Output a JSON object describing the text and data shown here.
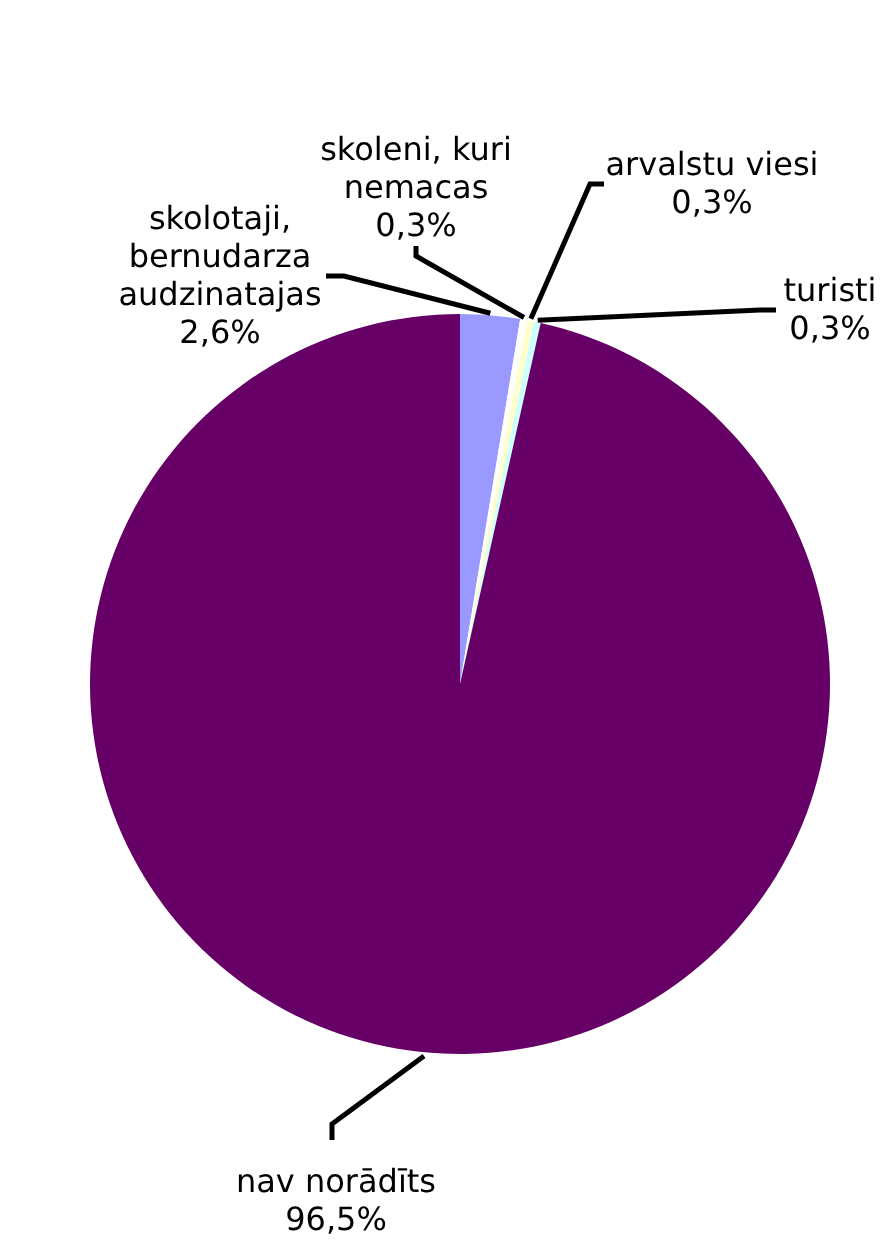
{
  "chart_data": {
    "type": "pie",
    "categories": [
      "skolotaji, bernudarza audzinatajas",
      "skoleni, kuri nemacas",
      "arvalstu viesi",
      "turisti",
      "nav norādīts"
    ],
    "values": [
      2.6,
      0.3,
      0.3,
      0.3,
      96.5
    ],
    "colors": [
      "#9999ff",
      "#ffffff",
      "#ffffcc",
      "#ccffff",
      "#660066"
    ],
    "value_labels": [
      "2,6%",
      "0,3%",
      "0,3%",
      "0,3%",
      "96,5%"
    ]
  }
}
